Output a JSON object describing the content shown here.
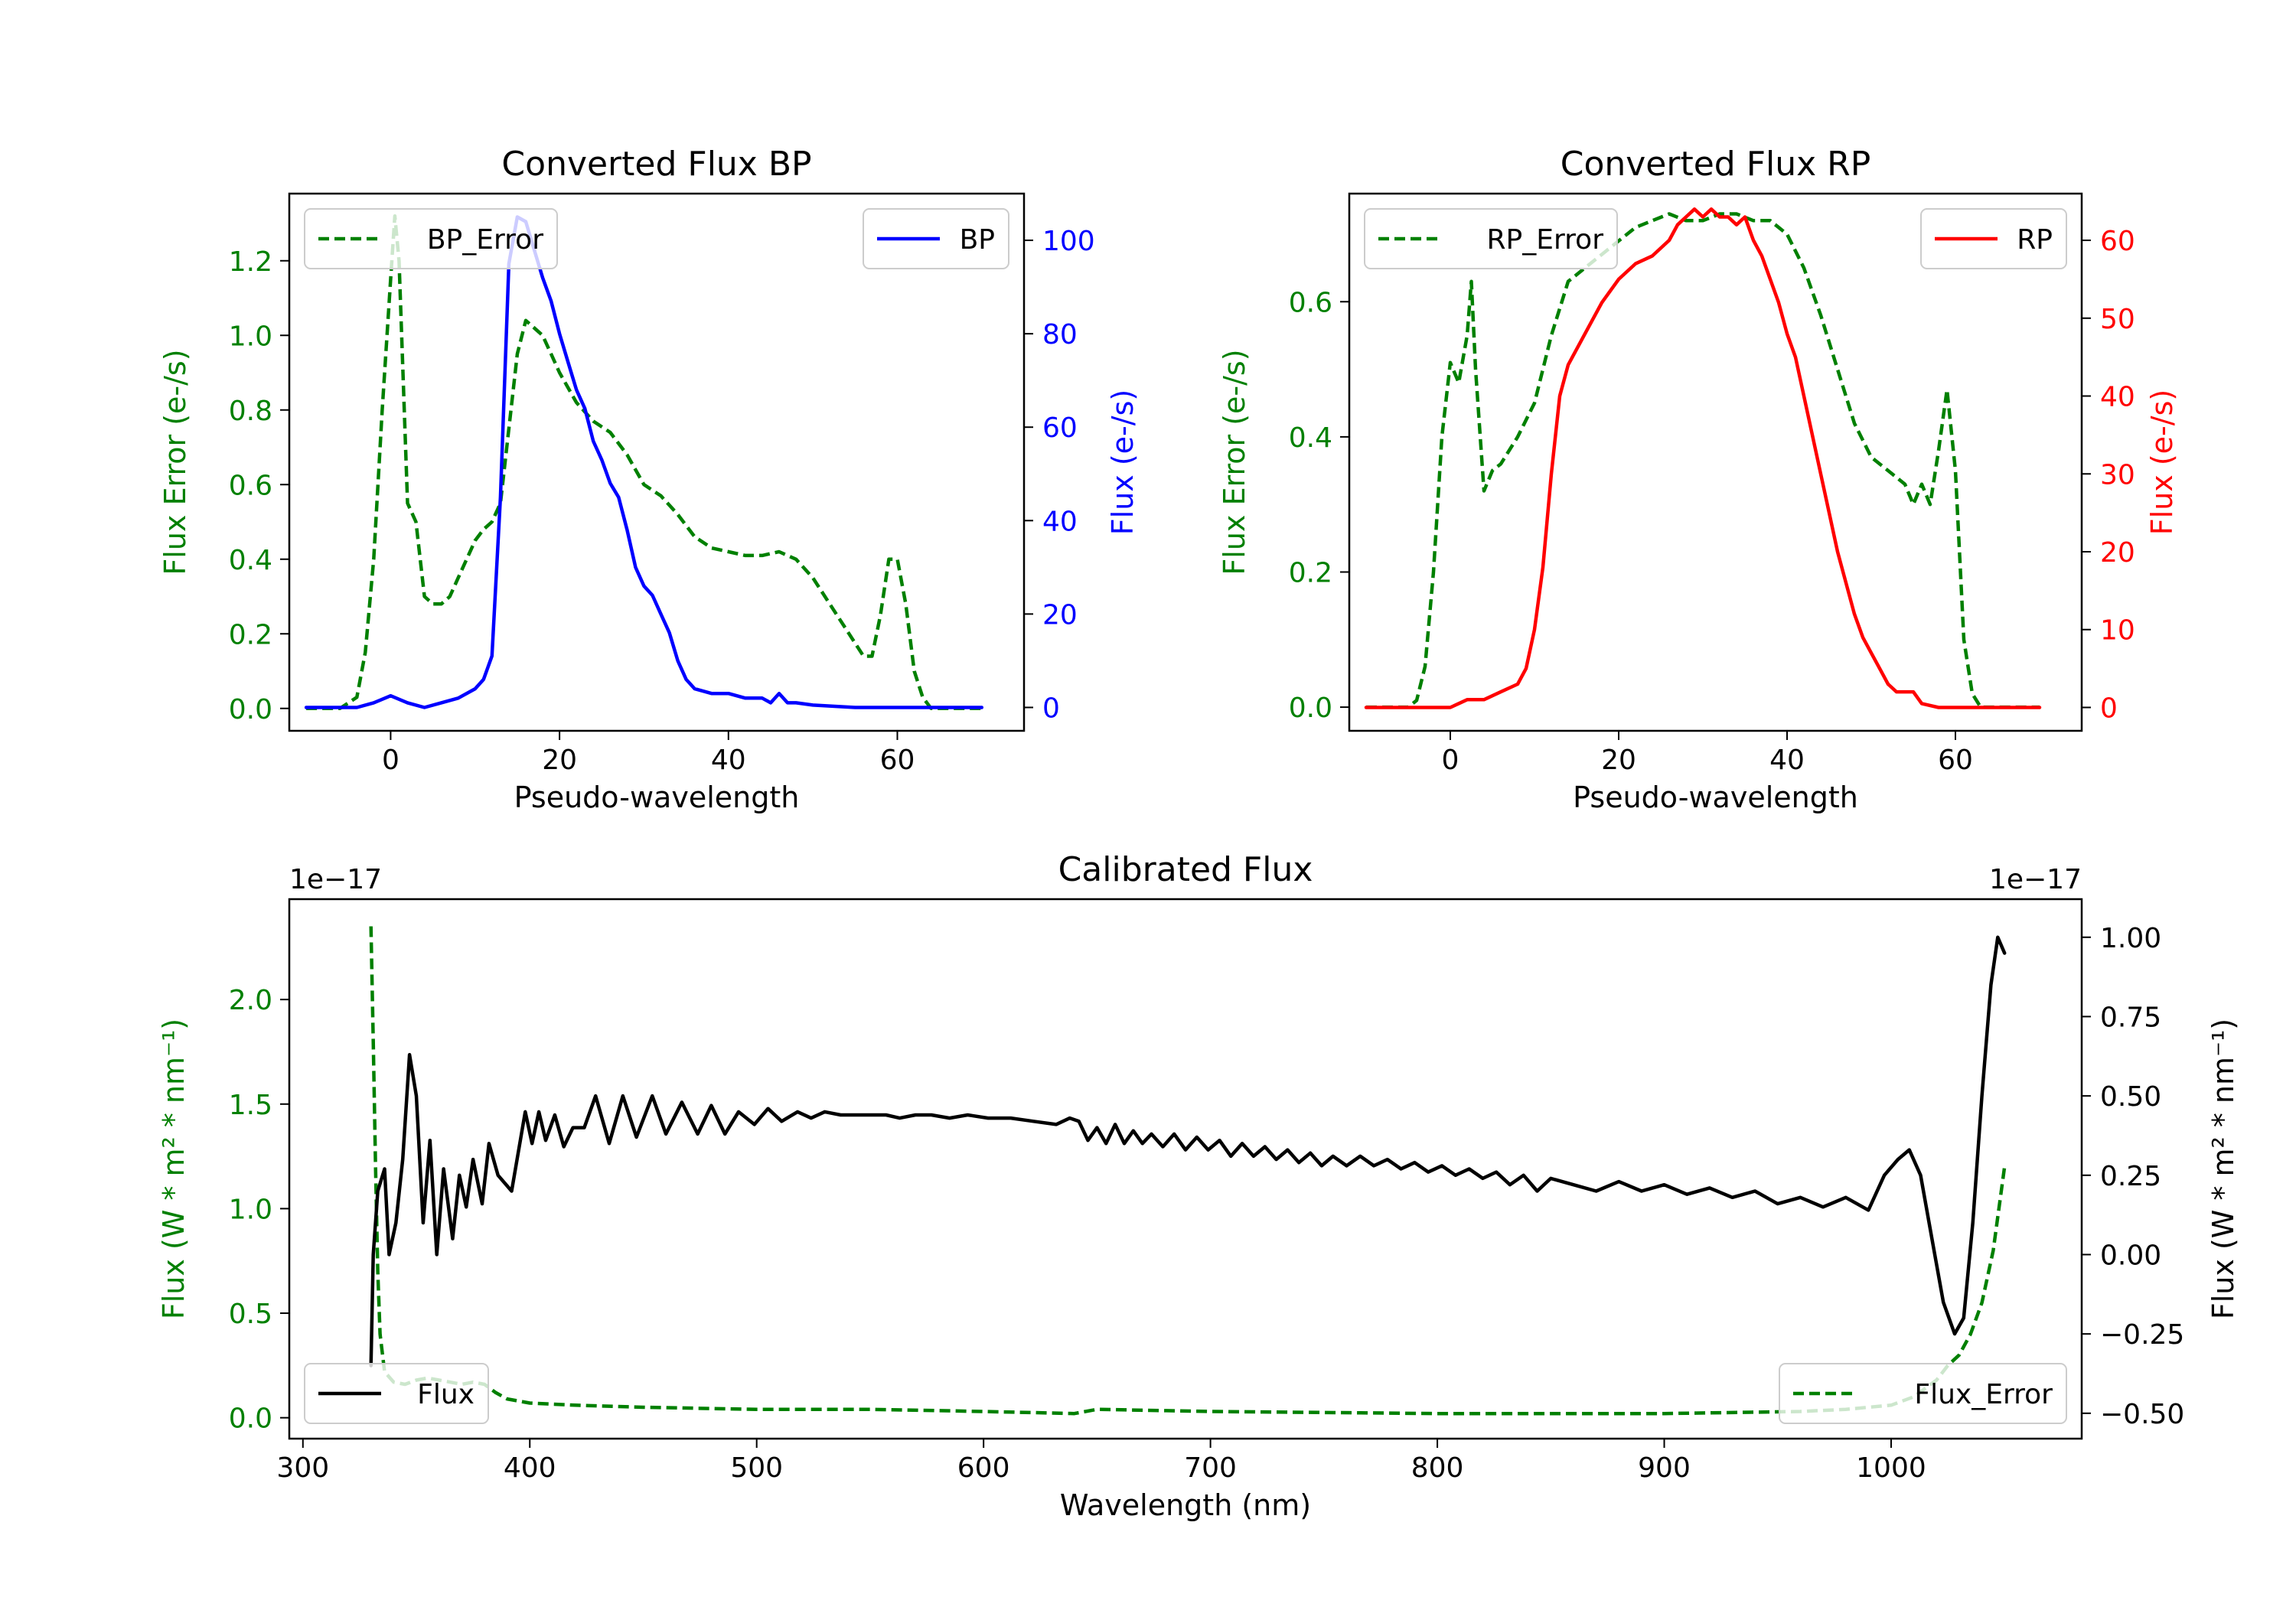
{
  "chart_data": [
    {
      "type": "line",
      "title": "Converted Flux BP",
      "xlabel": "Pseudo-wavelength",
      "ylabel_left": "Flux Error (e-/s)",
      "ylabel_right": "Flux (e-/s)",
      "xlim": [
        -12,
        75
      ],
      "ylim_left": [
        -0.06,
        1.38
      ],
      "ylim_right": [
        -5,
        110
      ],
      "xticks": [
        0,
        20,
        40,
        60
      ],
      "yticks_left": [
        0.0,
        0.2,
        0.4,
        0.6,
        0.8,
        1.0,
        1.2
      ],
      "yticks_right": [
        0,
        20,
        40,
        60,
        80,
        100
      ],
      "colors": {
        "left_axis": "#008000",
        "right_axis": "#0000ff"
      },
      "legends": [
        {
          "label": "BP_Error",
          "position": "upper left",
          "style": "dashed",
          "color": "#008000"
        },
        {
          "label": "BP",
          "position": "upper right",
          "style": "solid",
          "color": "#0000ff"
        }
      ],
      "series": [
        {
          "name": "BP_Error",
          "axis": "left",
          "color": "#008000",
          "style": "dashed",
          "x": [
            -10,
            -6,
            -4,
            -3,
            -2,
            -1,
            0,
            0.5,
            1,
            2,
            3,
            4,
            5,
            6,
            7,
            8,
            9,
            10,
            11,
            12,
            13,
            14,
            15,
            16,
            17,
            18,
            19,
            20,
            22,
            24,
            26,
            28,
            30,
            32,
            34,
            36,
            38,
            40,
            42,
            44,
            46,
            48,
            50,
            52,
            54,
            56,
            57,
            58,
            59,
            60,
            61,
            62,
            63,
            64,
            66,
            70
          ],
          "y": [
            0.0,
            0.0,
            0.03,
            0.15,
            0.4,
            0.8,
            1.15,
            1.32,
            1.2,
            0.55,
            0.5,
            0.3,
            0.28,
            0.28,
            0.3,
            0.35,
            0.4,
            0.45,
            0.48,
            0.5,
            0.55,
            0.75,
            0.95,
            1.04,
            1.02,
            1.0,
            0.95,
            0.9,
            0.82,
            0.77,
            0.74,
            0.68,
            0.6,
            0.57,
            0.52,
            0.46,
            0.43,
            0.42,
            0.41,
            0.41,
            0.42,
            0.4,
            0.35,
            0.28,
            0.21,
            0.14,
            0.14,
            0.25,
            0.4,
            0.4,
            0.28,
            0.1,
            0.03,
            0.0,
            0.0,
            0.0
          ]
        },
        {
          "name": "BP",
          "axis": "right",
          "color": "#0000ff",
          "style": "solid",
          "x": [
            -10,
            -4,
            -2,
            0,
            2,
            4,
            6,
            8,
            10,
            11,
            12,
            13,
            14,
            15,
            16,
            17,
            18,
            19,
            20,
            21,
            22,
            23,
            24,
            25,
            26,
            27,
            28,
            29,
            30,
            31,
            32,
            33,
            34,
            35,
            36,
            38,
            40,
            42,
            44,
            45,
            46,
            47,
            48,
            50,
            55,
            60,
            65,
            70
          ],
          "y": [
            0,
            0,
            1,
            2.5,
            1,
            0,
            1,
            2,
            4,
            6,
            11,
            45,
            95,
            105,
            104,
            98,
            92,
            87,
            80,
            74,
            68,
            64,
            57,
            53,
            48,
            45,
            38,
            30,
            26,
            24,
            20,
            16,
            10,
            6,
            4,
            3,
            3,
            2,
            2,
            1,
            3,
            1,
            1,
            0.5,
            0,
            0,
            0,
            0
          ]
        }
      ]
    },
    {
      "type": "line",
      "title": "Converted Flux RP",
      "xlabel": "Pseudo-wavelength",
      "ylabel_left": "Flux Error (e-/s)",
      "ylabel_right": "Flux (e-/s)",
      "xlim": [
        -12,
        75
      ],
      "ylim_left": [
        -0.035,
        0.76
      ],
      "ylim_right": [
        -3,
        66
      ],
      "xticks": [
        0,
        20,
        40,
        60
      ],
      "yticks_left": [
        0.0,
        0.2,
        0.4,
        0.6
      ],
      "yticks_right": [
        0,
        10,
        20,
        30,
        40,
        50,
        60
      ],
      "colors": {
        "left_axis": "#008000",
        "right_axis": "#ff0000"
      },
      "legends": [
        {
          "label": "RP_Error",
          "position": "upper left",
          "style": "dashed",
          "color": "#008000"
        },
        {
          "label": "RP",
          "position": "upper right",
          "style": "solid",
          "color": "#ff0000"
        }
      ],
      "series": [
        {
          "name": "RP_Error",
          "axis": "left",
          "color": "#008000",
          "style": "dashed",
          "x": [
            -10,
            -5,
            -4,
            -3,
            -2,
            -1,
            0,
            1,
            2,
            2.5,
            3,
            4,
            5,
            6,
            8,
            10,
            12,
            14,
            16,
            18,
            20,
            22,
            24,
            26,
            28,
            30,
            32,
            34,
            36,
            38,
            40,
            42,
            44,
            46,
            48,
            50,
            52,
            54,
            55,
            56,
            57,
            58,
            59,
            60,
            61,
            62,
            63,
            70
          ],
          "y": [
            0.0,
            0.0,
            0.01,
            0.06,
            0.2,
            0.4,
            0.51,
            0.48,
            0.55,
            0.63,
            0.5,
            0.32,
            0.35,
            0.36,
            0.4,
            0.45,
            0.55,
            0.63,
            0.65,
            0.67,
            0.69,
            0.71,
            0.72,
            0.73,
            0.72,
            0.72,
            0.73,
            0.73,
            0.72,
            0.72,
            0.7,
            0.65,
            0.58,
            0.5,
            0.42,
            0.37,
            0.35,
            0.33,
            0.3,
            0.33,
            0.3,
            0.38,
            0.47,
            0.35,
            0.1,
            0.02,
            0.0,
            0.0
          ]
        },
        {
          "name": "RP",
          "axis": "right",
          "color": "#ff0000",
          "style": "solid",
          "x": [
            -10,
            -5,
            0,
            2,
            4,
            6,
            8,
            9,
            10,
            11,
            12,
            13,
            14,
            16,
            18,
            20,
            22,
            24,
            26,
            27,
            28,
            29,
            30,
            31,
            32,
            33,
            34,
            35,
            36,
            37,
            38,
            39,
            40,
            41,
            42,
            43,
            44,
            45,
            46,
            47,
            48,
            49,
            50,
            51,
            52,
            53,
            54,
            55,
            56,
            58,
            60,
            65,
            70
          ],
          "y": [
            0,
            0,
            0,
            1,
            1,
            2,
            3,
            5,
            10,
            18,
            30,
            40,
            44,
            48,
            52,
            55,
            57,
            58,
            60,
            62,
            63,
            64,
            63,
            64,
            63,
            63,
            62,
            63,
            60,
            58,
            55,
            52,
            48,
            45,
            40,
            35,
            30,
            25,
            20,
            16,
            12,
            9,
            7,
            5,
            3,
            2,
            2,
            2,
            0.5,
            0,
            0,
            0,
            0
          ]
        }
      ]
    },
    {
      "type": "line",
      "title": "Calibrated Flux",
      "xlabel": "Wavelength (nm)",
      "ylabel_left": "Flux (W * m² * nm⁻¹)",
      "ylabel_right": "Flux (W * m² * nm⁻¹)",
      "offset_left": "1e−17",
      "offset_right": "1e−17",
      "xlim": [
        294,
        1084
      ],
      "ylim_left": [
        -0.1,
        2.48
      ],
      "ylim_right": [
        -0.58,
        1.12
      ],
      "xticks": [
        300,
        400,
        500,
        600,
        700,
        800,
        900,
        1000
      ],
      "yticks_left": [
        0.0,
        0.5,
        1.0,
        1.5,
        2.0
      ],
      "yticks_right": [
        -0.5,
        -0.25,
        0.0,
        0.25,
        0.5,
        0.75,
        1.0
      ],
      "ytick_labels_right": [
        "−0.50",
        "−0.25",
        "0.00",
        "0.25",
        "0.50",
        "0.75",
        "1.00"
      ],
      "colors": {
        "left_axis": "#008000",
        "right_axis": "#000000"
      },
      "legends": [
        {
          "label": "Flux",
          "position": "lower left",
          "style": "solid",
          "color": "#000000"
        },
        {
          "label": "Flux_Error",
          "position": "lower right",
          "style": "dashed",
          "color": "#008000"
        }
      ],
      "series": [
        {
          "name": "Flux_Error",
          "axis": "left",
          "color": "#008000",
          "style": "dashed",
          "x": [
            330,
            331,
            332,
            333,
            334,
            336,
            340,
            345,
            350,
            355,
            360,
            365,
            370,
            375,
            380,
            385,
            390,
            395,
            400,
            420,
            450,
            500,
            550,
            600,
            640,
            650,
            700,
            800,
            900,
            960,
            980,
            1000,
            1010,
            1020,
            1025,
            1030,
            1035,
            1040,
            1045,
            1050
          ],
          "y": [
            2.35,
            1.8,
            1.2,
            0.7,
            0.4,
            0.22,
            0.17,
            0.16,
            0.18,
            0.19,
            0.18,
            0.17,
            0.16,
            0.17,
            0.16,
            0.12,
            0.09,
            0.08,
            0.07,
            0.06,
            0.05,
            0.04,
            0.04,
            0.03,
            0.02,
            0.04,
            0.03,
            0.02,
            0.02,
            0.03,
            0.04,
            0.06,
            0.1,
            0.18,
            0.25,
            0.3,
            0.4,
            0.55,
            0.8,
            1.2
          ]
        },
        {
          "name": "Flux",
          "axis": "right",
          "color": "#000000",
          "style": "solid",
          "x": [
            330,
            331,
            333,
            336,
            338,
            341,
            344,
            347,
            350,
            353,
            356,
            359,
            362,
            366,
            369,
            372,
            375,
            379,
            382,
            386,
            392,
            398,
            401,
            404,
            407,
            411,
            415,
            419,
            424,
            429,
            435,
            441,
            447,
            454,
            460,
            467,
            474,
            480,
            486,
            492,
            499,
            505,
            511,
            518,
            524,
            530,
            537,
            544,
            550,
            557,
            563,
            570,
            577,
            585,
            593,
            602,
            612,
            622,
            632,
            638,
            642,
            646,
            650,
            654,
            658,
            662,
            666,
            670,
            674,
            679,
            684,
            689,
            694,
            699,
            704,
            709,
            714,
            719,
            724,
            729,
            734,
            739,
            744,
            749,
            754,
            760,
            766,
            772,
            778,
            784,
            790,
            796,
            802,
            808,
            814,
            820,
            826,
            832,
            838,
            844,
            850,
            860,
            870,
            880,
            890,
            900,
            910,
            920,
            930,
            940,
            950,
            960,
            970,
            980,
            990,
            997,
            1003,
            1008,
            1013,
            1018,
            1023,
            1028,
            1032,
            1036,
            1040,
            1044,
            1047,
            1050
          ],
          "y": [
            -0.35,
            0.0,
            0.2,
            0.27,
            0.0,
            0.1,
            0.3,
            0.63,
            0.5,
            0.1,
            0.36,
            0.0,
            0.27,
            0.05,
            0.25,
            0.15,
            0.3,
            0.16,
            0.35,
            0.25,
            0.2,
            0.45,
            0.35,
            0.45,
            0.36,
            0.44,
            0.34,
            0.4,
            0.4,
            0.5,
            0.35,
            0.5,
            0.37,
            0.5,
            0.38,
            0.48,
            0.38,
            0.47,
            0.38,
            0.45,
            0.41,
            0.46,
            0.42,
            0.45,
            0.43,
            0.45,
            0.44,
            0.44,
            0.44,
            0.44,
            0.43,
            0.44,
            0.44,
            0.43,
            0.44,
            0.43,
            0.43,
            0.42,
            0.41,
            0.43,
            0.42,
            0.36,
            0.4,
            0.35,
            0.41,
            0.35,
            0.39,
            0.35,
            0.38,
            0.34,
            0.38,
            0.33,
            0.37,
            0.33,
            0.36,
            0.31,
            0.35,
            0.31,
            0.34,
            0.3,
            0.33,
            0.29,
            0.32,
            0.28,
            0.31,
            0.28,
            0.31,
            0.28,
            0.3,
            0.27,
            0.29,
            0.26,
            0.28,
            0.25,
            0.27,
            0.24,
            0.26,
            0.22,
            0.25,
            0.2,
            0.24,
            0.22,
            0.2,
            0.23,
            0.2,
            0.22,
            0.19,
            0.21,
            0.18,
            0.2,
            0.16,
            0.18,
            0.15,
            0.18,
            0.14,
            0.25,
            0.3,
            0.33,
            0.25,
            0.05,
            -0.15,
            -0.25,
            -0.2,
            0.1,
            0.5,
            0.85,
            1.0,
            0.95
          ]
        }
      ]
    }
  ]
}
